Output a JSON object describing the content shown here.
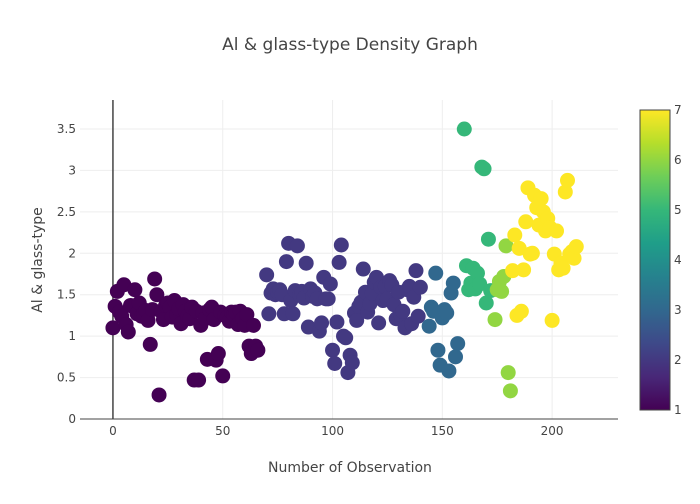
{
  "chart_data": {
    "type": "scatter",
    "title": "Al & glass-type Density Graph",
    "xlabel": "Number of Observation",
    "ylabel": "Al & glass-type",
    "xlim": [
      -15,
      230
    ],
    "ylim": [
      0,
      3.85
    ],
    "x_ticks": [
      0,
      50,
      100,
      150,
      200
    ],
    "y_ticks": [
      0,
      0.5,
      1,
      1.5,
      2,
      2.5,
      3,
      3.5
    ],
    "x_tick_labels": [
      "0",
      "50",
      "100",
      "150",
      "200"
    ],
    "y_tick_labels": [
      "0",
      "0.5",
      "1",
      "1.5",
      "2",
      "2.5",
      "3",
      "3.5"
    ],
    "grid": true,
    "colorbar": {
      "min": 1,
      "max": 7,
      "ticks": [
        1,
        2,
        3,
        4,
        5,
        6,
        7
      ],
      "tick_labels": [
        "1",
        "2",
        "3",
        "4",
        "5",
        "6",
        "7"
      ],
      "colorscale": "Viridis",
      "colors": [
        "#440154",
        "#482878",
        "#3e4989",
        "#31688e",
        "#26828e",
        "#1f9e89",
        "#35b779",
        "#6ece58",
        "#b5de2b",
        "#fde725"
      ]
    },
    "points": [
      {
        "x": 0,
        "y": 1.1,
        "c": 1
      },
      {
        "x": 1,
        "y": 1.36,
        "c": 1
      },
      {
        "x": 2,
        "y": 1.54,
        "c": 1
      },
      {
        "x": 3,
        "y": 1.29,
        "c": 1
      },
      {
        "x": 4,
        "y": 1.24,
        "c": 1
      },
      {
        "x": 5,
        "y": 1.62,
        "c": 1
      },
      {
        "x": 6,
        "y": 1.14,
        "c": 1
      },
      {
        "x": 7,
        "y": 1.05,
        "c": 1
      },
      {
        "x": 8,
        "y": 1.37,
        "c": 1
      },
      {
        "x": 9,
        "y": 1.36,
        "c": 1
      },
      {
        "x": 10,
        "y": 1.56,
        "c": 1
      },
      {
        "x": 11,
        "y": 1.27,
        "c": 1
      },
      {
        "x": 12,
        "y": 1.4,
        "c": 1
      },
      {
        "x": 13,
        "y": 1.24,
        "c": 1
      },
      {
        "x": 14,
        "y": 1.27,
        "c": 1
      },
      {
        "x": 15,
        "y": 1.31,
        "c": 1
      },
      {
        "x": 16,
        "y": 1.19,
        "c": 1
      },
      {
        "x": 17,
        "y": 0.9,
        "c": 1
      },
      {
        "x": 18,
        "y": 1.32,
        "c": 1
      },
      {
        "x": 19,
        "y": 1.69,
        "c": 1
      },
      {
        "x": 20,
        "y": 1.5,
        "c": 1
      },
      {
        "x": 21,
        "y": 0.29,
        "c": 1
      },
      {
        "x": 22,
        "y": 1.3,
        "c": 1
      },
      {
        "x": 23,
        "y": 1.2,
        "c": 1
      },
      {
        "x": 24,
        "y": 1.37,
        "c": 1
      },
      {
        "x": 25,
        "y": 1.4,
        "c": 1
      },
      {
        "x": 26,
        "y": 1.35,
        "c": 1
      },
      {
        "x": 27,
        "y": 1.23,
        "c": 1
      },
      {
        "x": 28,
        "y": 1.43,
        "c": 1
      },
      {
        "x": 29,
        "y": 1.26,
        "c": 1
      },
      {
        "x": 30,
        "y": 1.33,
        "c": 1
      },
      {
        "x": 31,
        "y": 1.15,
        "c": 1
      },
      {
        "x": 32,
        "y": 1.38,
        "c": 1
      },
      {
        "x": 33,
        "y": 1.3,
        "c": 1
      },
      {
        "x": 34,
        "y": 1.24,
        "c": 1
      },
      {
        "x": 35,
        "y": 1.21,
        "c": 1
      },
      {
        "x": 36,
        "y": 1.35,
        "c": 1
      },
      {
        "x": 37,
        "y": 0.47,
        "c": 1
      },
      {
        "x": 38,
        "y": 1.3,
        "c": 1
      },
      {
        "x": 39,
        "y": 0.47,
        "c": 1
      },
      {
        "x": 40,
        "y": 1.13,
        "c": 1
      },
      {
        "x": 41,
        "y": 1.28,
        "c": 1
      },
      {
        "x": 42,
        "y": 1.21,
        "c": 1
      },
      {
        "x": 43,
        "y": 0.72,
        "c": 1
      },
      {
        "x": 44,
        "y": 1.32,
        "c": 1
      },
      {
        "x": 45,
        "y": 1.35,
        "c": 1
      },
      {
        "x": 46,
        "y": 1.2,
        "c": 1
      },
      {
        "x": 47,
        "y": 0.71,
        "c": 1
      },
      {
        "x": 48,
        "y": 0.79,
        "c": 1
      },
      {
        "x": 49,
        "y": 1.29,
        "c": 1
      },
      {
        "x": 50,
        "y": 0.52,
        "c": 1
      },
      {
        "x": 51,
        "y": 1.25,
        "c": 1
      },
      {
        "x": 52,
        "y": 1.23,
        "c": 1
      },
      {
        "x": 53,
        "y": 1.18,
        "c": 1
      },
      {
        "x": 54,
        "y": 1.29,
        "c": 1
      },
      {
        "x": 55,
        "y": 1.26,
        "c": 1
      },
      {
        "x": 56,
        "y": 1.29,
        "c": 1
      },
      {
        "x": 57,
        "y": 1.14,
        "c": 1
      },
      {
        "x": 58,
        "y": 1.3,
        "c": 1
      },
      {
        "x": 59,
        "y": 1.21,
        "c": 1
      },
      {
        "x": 60,
        "y": 1.13,
        "c": 1
      },
      {
        "x": 61,
        "y": 1.26,
        "c": 1
      },
      {
        "x": 62,
        "y": 0.88,
        "c": 1
      },
      {
        "x": 63,
        "y": 0.79,
        "c": 1
      },
      {
        "x": 64,
        "y": 1.13,
        "c": 1
      },
      {
        "x": 65,
        "y": 0.88,
        "c": 1
      },
      {
        "x": 66,
        "y": 0.83,
        "c": 1
      },
      {
        "x": 70,
        "y": 1.74,
        "c": 2
      },
      {
        "x": 71,
        "y": 1.27,
        "c": 2
      },
      {
        "x": 72,
        "y": 1.52,
        "c": 2
      },
      {
        "x": 73,
        "y": 1.57,
        "c": 2
      },
      {
        "x": 74,
        "y": 1.5,
        "c": 2
      },
      {
        "x": 75,
        "y": 1.53,
        "c": 2
      },
      {
        "x": 76,
        "y": 1.56,
        "c": 2
      },
      {
        "x": 77,
        "y": 1.5,
        "c": 2
      },
      {
        "x": 78,
        "y": 1.27,
        "c": 2
      },
      {
        "x": 79,
        "y": 1.9,
        "c": 2
      },
      {
        "x": 80,
        "y": 2.12,
        "c": 2
      },
      {
        "x": 81,
        "y": 1.43,
        "c": 2
      },
      {
        "x": 82,
        "y": 1.27,
        "c": 2
      },
      {
        "x": 83,
        "y": 1.55,
        "c": 2
      },
      {
        "x": 84,
        "y": 2.09,
        "c": 2
      },
      {
        "x": 85,
        "y": 1.5,
        "c": 2
      },
      {
        "x": 86,
        "y": 1.54,
        "c": 2
      },
      {
        "x": 87,
        "y": 1.46,
        "c": 2
      },
      {
        "x": 88,
        "y": 1.88,
        "c": 2
      },
      {
        "x": 89,
        "y": 1.11,
        "c": 2
      },
      {
        "x": 90,
        "y": 1.57,
        "c": 2
      },
      {
        "x": 91,
        "y": 1.48,
        "c": 2
      },
      {
        "x": 92,
        "y": 1.52,
        "c": 2
      },
      {
        "x": 93,
        "y": 1.45,
        "c": 2
      },
      {
        "x": 94,
        "y": 1.06,
        "c": 2
      },
      {
        "x": 95,
        "y": 1.16,
        "c": 2
      },
      {
        "x": 96,
        "y": 1.71,
        "c": 2
      },
      {
        "x": 97,
        "y": 1.45,
        "c": 2
      },
      {
        "x": 98,
        "y": 1.45,
        "c": 2
      },
      {
        "x": 99,
        "y": 1.63,
        "c": 2
      },
      {
        "x": 100,
        "y": 0.83,
        "c": 2
      },
      {
        "x": 101,
        "y": 0.67,
        "c": 2
      },
      {
        "x": 102,
        "y": 1.17,
        "c": 2
      },
      {
        "x": 103,
        "y": 1.89,
        "c": 2
      },
      {
        "x": 104,
        "y": 2.1,
        "c": 2
      },
      {
        "x": 105,
        "y": 1.0,
        "c": 2
      },
      {
        "x": 106,
        "y": 0.98,
        "c": 2
      },
      {
        "x": 107,
        "y": 0.56,
        "c": 2
      },
      {
        "x": 108,
        "y": 0.77,
        "c": 2
      },
      {
        "x": 109,
        "y": 0.68,
        "c": 2
      },
      {
        "x": 110,
        "y": 1.28,
        "c": 2
      },
      {
        "x": 111,
        "y": 1.19,
        "c": 2
      },
      {
        "x": 112,
        "y": 1.36,
        "c": 2
      },
      {
        "x": 113,
        "y": 1.41,
        "c": 2
      },
      {
        "x": 114,
        "y": 1.81,
        "c": 2
      },
      {
        "x": 115,
        "y": 1.53,
        "c": 2
      },
      {
        "x": 116,
        "y": 1.29,
        "c": 2
      },
      {
        "x": 117,
        "y": 1.39,
        "c": 2
      },
      {
        "x": 118,
        "y": 1.52,
        "c": 2
      },
      {
        "x": 119,
        "y": 1.65,
        "c": 2
      },
      {
        "x": 120,
        "y": 1.71,
        "c": 2
      },
      {
        "x": 121,
        "y": 1.16,
        "c": 2
      },
      {
        "x": 122,
        "y": 1.59,
        "c": 2
      },
      {
        "x": 123,
        "y": 1.43,
        "c": 2
      },
      {
        "x": 124,
        "y": 1.6,
        "c": 2
      },
      {
        "x": 125,
        "y": 1.45,
        "c": 2
      },
      {
        "x": 126,
        "y": 1.67,
        "c": 2
      },
      {
        "x": 127,
        "y": 1.62,
        "c": 2
      },
      {
        "x": 128,
        "y": 1.38,
        "c": 2
      },
      {
        "x": 129,
        "y": 1.21,
        "c": 2
      },
      {
        "x": 130,
        "y": 1.53,
        "c": 2
      },
      {
        "x": 131,
        "y": 1.26,
        "c": 2
      },
      {
        "x": 132,
        "y": 1.3,
        "c": 2
      },
      {
        "x": 133,
        "y": 1.1,
        "c": 2
      },
      {
        "x": 134,
        "y": 1.56,
        "c": 2
      },
      {
        "x": 135,
        "y": 1.6,
        "c": 2
      },
      {
        "x": 136,
        "y": 1.15,
        "c": 2
      },
      {
        "x": 137,
        "y": 1.47,
        "c": 2
      },
      {
        "x": 138,
        "y": 1.79,
        "c": 2
      },
      {
        "x": 139,
        "y": 1.24,
        "c": 2
      },
      {
        "x": 140,
        "y": 1.59,
        "c": 2
      },
      {
        "x": 144,
        "y": 1.12,
        "c": 3
      },
      {
        "x": 145,
        "y": 1.35,
        "c": 3
      },
      {
        "x": 146,
        "y": 1.3,
        "c": 3
      },
      {
        "x": 147,
        "y": 1.76,
        "c": 3
      },
      {
        "x": 148,
        "y": 0.83,
        "c": 3
      },
      {
        "x": 149,
        "y": 0.65,
        "c": 3
      },
      {
        "x": 150,
        "y": 1.22,
        "c": 3
      },
      {
        "x": 151,
        "y": 1.32,
        "c": 3
      },
      {
        "x": 152,
        "y": 1.28,
        "c": 3
      },
      {
        "x": 153,
        "y": 0.58,
        "c": 3
      },
      {
        "x": 154,
        "y": 1.52,
        "c": 3
      },
      {
        "x": 155,
        "y": 1.64,
        "c": 3
      },
      {
        "x": 156,
        "y": 0.75,
        "c": 3
      },
      {
        "x": 157,
        "y": 0.91,
        "c": 3
      },
      {
        "x": 160,
        "y": 3.5,
        "c": 5
      },
      {
        "x": 161,
        "y": 1.85,
        "c": 5
      },
      {
        "x": 162,
        "y": 1.56,
        "c": 5
      },
      {
        "x": 163,
        "y": 1.64,
        "c": 5
      },
      {
        "x": 164,
        "y": 1.82,
        "c": 5
      },
      {
        "x": 165,
        "y": 1.57,
        "c": 5
      },
      {
        "x": 166,
        "y": 1.76,
        "c": 5
      },
      {
        "x": 167,
        "y": 1.63,
        "c": 5
      },
      {
        "x": 168,
        "y": 3.04,
        "c": 5
      },
      {
        "x": 169,
        "y": 3.02,
        "c": 5
      },
      {
        "x": 170,
        "y": 1.4,
        "c": 5
      },
      {
        "x": 171,
        "y": 2.17,
        "c": 5
      },
      {
        "x": 172,
        "y": 1.55,
        "c": 5
      },
      {
        "x": 174,
        "y": 1.2,
        "c": 6
      },
      {
        "x": 175,
        "y": 1.56,
        "c": 6
      },
      {
        "x": 176,
        "y": 1.66,
        "c": 6
      },
      {
        "x": 177,
        "y": 1.54,
        "c": 6
      },
      {
        "x": 178,
        "y": 1.72,
        "c": 6
      },
      {
        "x": 179,
        "y": 2.09,
        "c": 6
      },
      {
        "x": 180,
        "y": 0.56,
        "c": 6
      },
      {
        "x": 181,
        "y": 0.34,
        "c": 6
      },
      {
        "x": 182,
        "y": 1.79,
        "c": 7
      },
      {
        "x": 183,
        "y": 2.22,
        "c": 7
      },
      {
        "x": 184,
        "y": 1.25,
        "c": 7
      },
      {
        "x": 185,
        "y": 2.06,
        "c": 7
      },
      {
        "x": 186,
        "y": 1.3,
        "c": 7
      },
      {
        "x": 187,
        "y": 1.8,
        "c": 7
      },
      {
        "x": 188,
        "y": 2.38,
        "c": 7
      },
      {
        "x": 189,
        "y": 2.79,
        "c": 7
      },
      {
        "x": 190,
        "y": 1.99,
        "c": 7
      },
      {
        "x": 191,
        "y": 2.0,
        "c": 7
      },
      {
        "x": 192,
        "y": 2.7,
        "c": 7
      },
      {
        "x": 193,
        "y": 2.55,
        "c": 7
      },
      {
        "x": 194,
        "y": 2.34,
        "c": 7
      },
      {
        "x": 195,
        "y": 2.66,
        "c": 7
      },
      {
        "x": 196,
        "y": 2.5,
        "c": 7
      },
      {
        "x": 197,
        "y": 2.27,
        "c": 7
      },
      {
        "x": 198,
        "y": 2.42,
        "c": 7
      },
      {
        "x": 199,
        "y": 2.31,
        "c": 7
      },
      {
        "x": 200,
        "y": 1.19,
        "c": 7
      },
      {
        "x": 201,
        "y": 1.99,
        "c": 7
      },
      {
        "x": 202,
        "y": 2.27,
        "c": 7
      },
      {
        "x": 203,
        "y": 1.8,
        "c": 7
      },
      {
        "x": 204,
        "y": 1.88,
        "c": 7
      },
      {
        "x": 205,
        "y": 1.82,
        "c": 7
      },
      {
        "x": 206,
        "y": 2.74,
        "c": 7
      },
      {
        "x": 207,
        "y": 2.88,
        "c": 7
      },
      {
        "x": 208,
        "y": 1.99,
        "c": 7
      },
      {
        "x": 209,
        "y": 2.02,
        "c": 7
      },
      {
        "x": 210,
        "y": 1.94,
        "c": 7
      },
      {
        "x": 211,
        "y": 2.08,
        "c": 7
      }
    ]
  }
}
